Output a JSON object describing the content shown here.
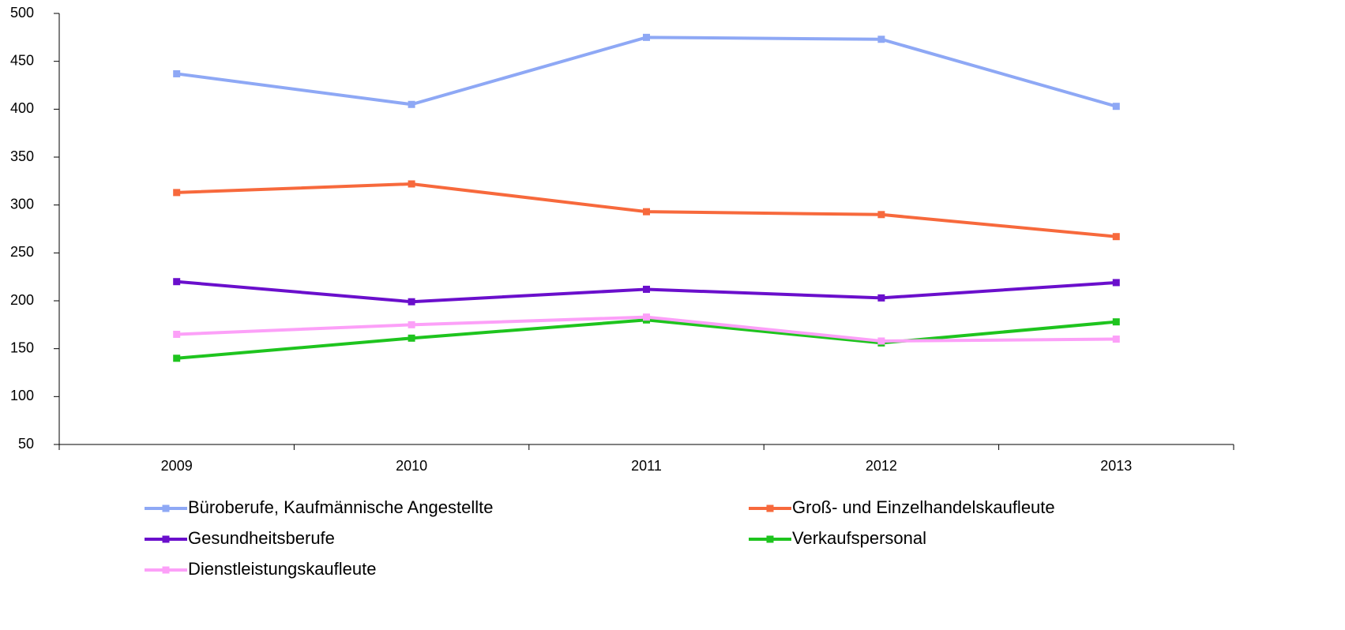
{
  "chart_data": {
    "type": "line",
    "categories": [
      "2009",
      "2010",
      "2011",
      "2012",
      "2013"
    ],
    "series": [
      {
        "name": "Büroberufe, Kaufmännische Angestellte",
        "color": "#8ea8f5",
        "values": [
          437,
          405,
          475,
          473,
          403
        ]
      },
      {
        "name": "Groß- und Einzelhandelskaufleute",
        "color": "#f7693c",
        "values": [
          313,
          322,
          293,
          290,
          267
        ]
      },
      {
        "name": "Gesundheitsberufe",
        "color": "#6a0fcc",
        "values": [
          220,
          199,
          212,
          203,
          219
        ]
      },
      {
        "name": "Verkaufspersonal",
        "color": "#1ec41e",
        "values": [
          140,
          161,
          180,
          156,
          178
        ]
      },
      {
        "name": "Dienstleistungskaufleute",
        "color": "#fca0f8",
        "values": [
          165,
          175,
          183,
          158,
          160
        ]
      }
    ],
    "ylim": [
      50,
      500
    ],
    "yticks": [
      50,
      100,
      150,
      200,
      250,
      300,
      350,
      400,
      450,
      500
    ],
    "grid": false,
    "legend": "bottom"
  }
}
